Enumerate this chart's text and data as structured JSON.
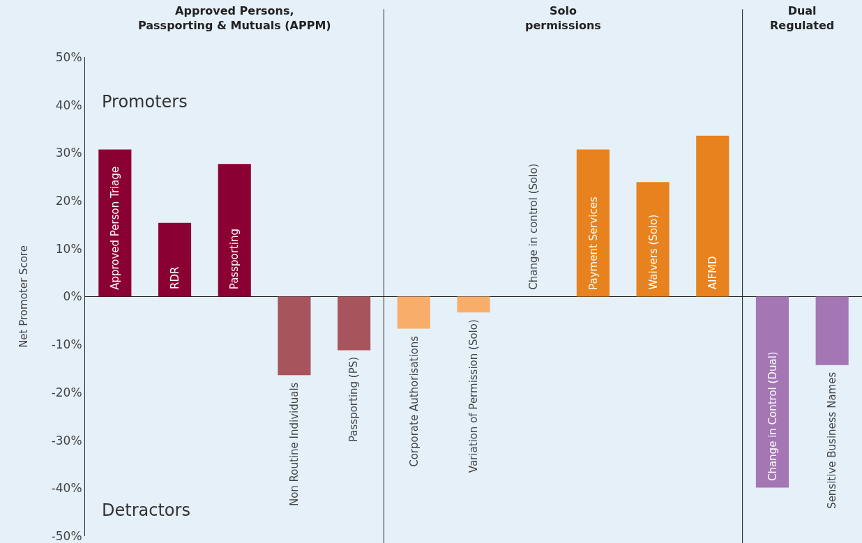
{
  "chart_data": {
    "type": "bar",
    "ylabel": "Net Promoter Score",
    "categories": [
      "Approved Person Triage",
      "RDR",
      "Passporting",
      "Non Routine Individuals",
      "Passporting (PS)",
      "Corporate Authorisations",
      "Variation of Permission (Solo)",
      "Change in control (Solo)",
      "Payment Services",
      "Waivers (Solo)",
      "AIFMD",
      "Change in Control (Dual)",
      "Sensitive Business Names"
    ],
    "values": [
      30.7,
      15.4,
      27.7,
      -16.4,
      -11.2,
      -6.7,
      -3.3,
      0,
      30.7,
      23.9,
      33.6,
      -39.9,
      -14.3
    ],
    "colors": [
      "#8b0032",
      "#8b0032",
      "#8b0032",
      "#a8545c",
      "#a8545c",
      "#f9ad6a",
      "#f9ad6a",
      "#e8821e",
      "#e8821e",
      "#e8821e",
      "#e8821e",
      "#a476b4",
      "#a476b4"
    ],
    "ylim": [
      -50,
      50
    ],
    "yticks": [
      {
        "value": -50,
        "label": "-50%"
      },
      {
        "value": -40,
        "label": "-40%"
      },
      {
        "value": -30,
        "label": "-30%"
      },
      {
        "value": -20,
        "label": "-20%"
      },
      {
        "value": -10,
        "label": "-10%"
      },
      {
        "value": 0,
        "label": "0%"
      },
      {
        "value": 10,
        "label": "10%"
      },
      {
        "value": 20,
        "label": "20%"
      },
      {
        "value": 30,
        "label": "30%"
      },
      {
        "value": 40,
        "label": "40%"
      },
      {
        "value": 50,
        "label": "50%"
      }
    ],
    "annotations": [
      "Approved Persons, Passporting & Mutuals (APPM)",
      "Solo permissions",
      "Dual Regulated",
      "Promoters",
      "Detractors"
    ],
    "grid": false
  }
}
